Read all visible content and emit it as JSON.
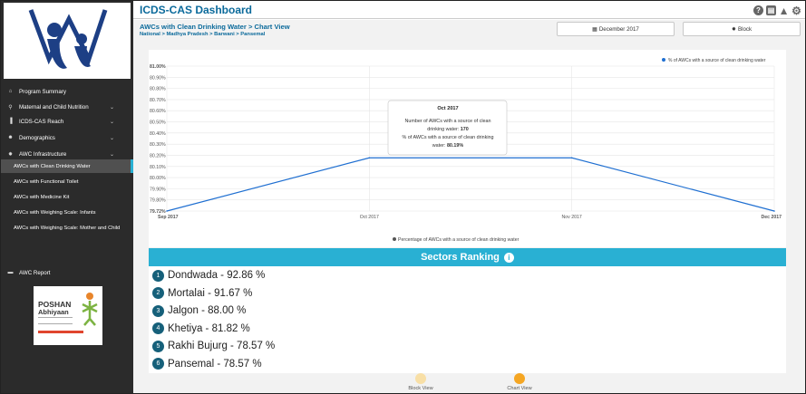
{
  "app": {
    "title": "ICDS-CAS Dashboard"
  },
  "header_icons": [
    "help-icon",
    "print-icon",
    "warning-icon",
    "gear-icon"
  ],
  "sidebar": {
    "items": [
      {
        "label": "Program Summary",
        "icon": "home-icon",
        "glyph": "⌂",
        "expandable": false
      },
      {
        "label": "Maternal and Child Nutrition",
        "icon": "bottle-icon",
        "glyph": "⚲",
        "expandable": true
      },
      {
        "label": "ICDS-CAS Reach",
        "icon": "bar-chart-icon",
        "glyph": "▐",
        "expandable": true
      },
      {
        "label": "Demographics",
        "icon": "users-icon",
        "glyph": "☻",
        "expandable": true
      },
      {
        "label": "AWC Infrastructure",
        "icon": "map-marker-icon",
        "glyph": "✸",
        "expandable": true
      }
    ],
    "subitems": [
      {
        "label": "AWCs with Clean Drinking Water",
        "active": true
      },
      {
        "label": "AWCs with Functional Toilet",
        "active": false
      },
      {
        "label": "AWCs with Medicine Kit",
        "active": false
      },
      {
        "label": "AWCs with Weighing Scale: Infants",
        "active": false
      },
      {
        "label": "AWCs with Weighing Scale: Mother and Child",
        "active": false
      }
    ],
    "report": {
      "label": "AWC Report",
      "icon": "report-icon",
      "glyph": "▬"
    },
    "poshan": {
      "title": "POSHAN",
      "subtitle": "Abhiyaan"
    }
  },
  "page": {
    "title": "AWCs with Clean Drinking Water > Chart View",
    "breadcrumb": "National > Madhya Pradesh > Barwani > Pansemal"
  },
  "filters": {
    "date": {
      "label": "December 2017",
      "icon": "calendar-icon",
      "glyph": "▦"
    },
    "location": {
      "label": "Block",
      "icon": "map-marker-icon",
      "glyph": "✸"
    }
  },
  "chart_data": {
    "type": "line",
    "x": [
      "Sep 2017",
      "Oct 2017",
      "Nov 2017",
      "Dec 2017"
    ],
    "series": [
      {
        "name": "% of AWCs with a source of clean drinking water",
        "values": [
          79.72,
          80.19,
          80.19,
          79.72
        ],
        "color": "#1f6fd1"
      }
    ],
    "ylim": [
      79.72,
      81.0
    ],
    "yticks": [
      "81.00%",
      "80.90%",
      "80.80%",
      "80.70%",
      "80.60%",
      "80.50%",
      "80.40%",
      "80.30%",
      "80.20%",
      "80.10%",
      "80.00%",
      "79.90%",
      "79.80%",
      "79.72%"
    ],
    "legend": "top-right",
    "grid": true,
    "caption": "Percentage of AWCs with a source of clean drinking water",
    "tooltip": {
      "title": "Oct 2017",
      "line1": "Number of AWCs with a source of clean",
      "line2_prefix": "drinking water: ",
      "line2_value": "170",
      "line3": "% of AWCs with a source of clean drinking",
      "line4_prefix": "water: ",
      "line4_value": "80.19%"
    }
  },
  "ranking": {
    "title": "Sectors Ranking",
    "icon": "info-icon",
    "rows": [
      {
        "rank": "1",
        "text": "Dondwada - 92.86 %"
      },
      {
        "rank": "2",
        "text": "Mortalai - 91.67 %"
      },
      {
        "rank": "3",
        "text": "Jalgon - 88.00 %"
      },
      {
        "rank": "4",
        "text": "Khetiya - 81.82 %"
      },
      {
        "rank": "5",
        "text": "Rakhi Bujurg - 78.57 %"
      },
      {
        "rank": "6",
        "text": "Pansemal - 78.57 %"
      }
    ]
  },
  "view_toggle": {
    "block": {
      "label": "Block View",
      "color": "#f8dfa6"
    },
    "chart": {
      "label": "Chart View",
      "color": "#f5a623"
    }
  },
  "colors": {
    "accent": "#29b0d3",
    "title": "#0b6a9b",
    "sidebar": "#2b2b2b",
    "rank_badge": "#16607a"
  }
}
